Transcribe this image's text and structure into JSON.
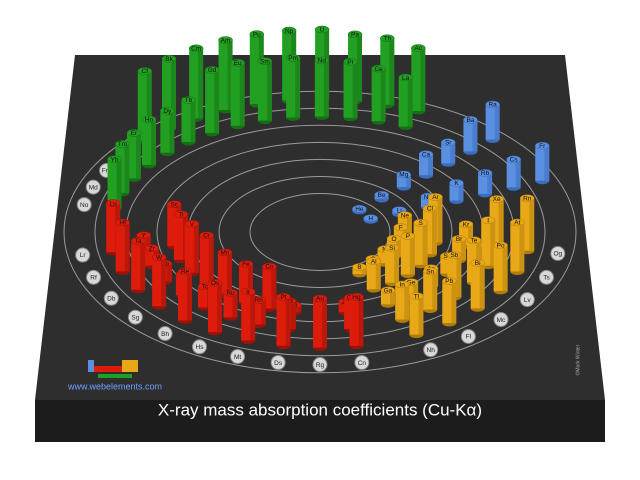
{
  "title": "X-ray mass absorption coefficients (Cu-Kα)",
  "website": "www.webelements.com",
  "credit": "©Mark Winter",
  "s_block": [
    [
      {
        "symbol": "H",
        "value": 0.3
      },
      {
        "symbol": "He",
        "value": 0.3
      }
    ],
    [
      {
        "symbol": "Li",
        "value": 0.5
      },
      {
        "symbol": "Be",
        "value": 0.6
      }
    ],
    [
      {
        "symbol": "Na",
        "value": 1.5
      },
      {
        "symbol": "Mg",
        "value": 1.8
      }
    ],
    [
      {
        "symbol": "K",
        "value": 2.5
      },
      {
        "symbol": "Ca",
        "value": 3
      }
    ],
    [
      {
        "symbol": "Rb",
        "value": 3
      },
      {
        "symbol": "Sr",
        "value": 3
      }
    ],
    [
      {
        "symbol": "Cs",
        "value": 4
      },
      {
        "symbol": "Ba",
        "value": 4.5
      }
    ],
    [
      {
        "symbol": "Fr",
        "value": 5
      },
      {
        "symbol": "Ra",
        "value": 5
      }
    ]
  ],
  "p_block": [
    [
      {
        "symbol": "B",
        "value": 1
      },
      {
        "symbol": "C",
        "value": 1.5
      },
      {
        "symbol": "N",
        "value": 2
      },
      {
        "symbol": "O",
        "value": 2.5
      },
      {
        "symbol": "F",
        "value": 3
      },
      {
        "symbol": "Ne",
        "value": 3.5
      }
    ],
    [
      {
        "symbol": "Al",
        "value": 4
      },
      {
        "symbol": "Si",
        "value": 5
      },
      {
        "symbol": "P",
        "value": 5.5
      },
      {
        "symbol": "S",
        "value": 6
      },
      {
        "symbol": "Cl",
        "value": 6.5
      },
      {
        "symbol": "Ar",
        "value": 6.5
      }
    ],
    [
      {
        "symbol": "Ga",
        "value": 2
      },
      {
        "symbol": "Ge",
        "value": 2
      },
      {
        "symbol": "As",
        "value": 2.5
      },
      {
        "symbol": "Se",
        "value": 2.5
      },
      {
        "symbol": "Br",
        "value": 3
      },
      {
        "symbol": "Kr",
        "value": 3
      }
    ],
    [
      {
        "symbol": "In",
        "value": 5
      },
      {
        "symbol": "Sn",
        "value": 5.5
      },
      {
        "symbol": "Sb",
        "value": 6
      },
      {
        "symbol": "Te",
        "value": 6
      },
      {
        "symbol": "I",
        "value": 6.5
      },
      {
        "symbol": "Xe",
        "value": 7
      }
    ],
    [
      {
        "symbol": "Tl",
        "value": 5.5
      },
      {
        "symbol": "Pb",
        "value": 6
      },
      {
        "symbol": "Bi",
        "value": 6.5
      },
      {
        "symbol": "Po",
        "value": 6.5
      },
      {
        "symbol": "At",
        "value": 7
      },
      {
        "symbol": "Rn",
        "value": 7.5
      }
    ],
    [
      {
        "symbol": "Nh"
      },
      {
        "symbol": "Fl"
      },
      {
        "symbol": "Mc"
      },
      {
        "symbol": "Lv"
      },
      {
        "symbol": "Ts"
      },
      {
        "symbol": "Og"
      }
    ]
  ],
  "d_block": [
    [
      {
        "symbol": "Sc",
        "value": 6
      },
      {
        "symbol": "Ti",
        "value": 6.5
      },
      {
        "symbol": "V",
        "value": 7
      },
      {
        "symbol": "Cr",
        "value": 7
      },
      {
        "symbol": "Mn",
        "value": 6
      },
      {
        "symbol": "Fe",
        "value": 5.5
      },
      {
        "symbol": "Co",
        "value": 6
      },
      {
        "symbol": "Ni",
        "value": 1
      },
      {
        "symbol": "Cu",
        "value": 1.2
      },
      {
        "symbol": "Zn",
        "value": 1.5
      }
    ],
    [
      {
        "symbol": "Y",
        "value": 2
      },
      {
        "symbol": "Zr",
        "value": 2.5
      },
      {
        "symbol": "Nb",
        "value": 2.5
      },
      {
        "symbol": "Mo",
        "value": 3
      },
      {
        "symbol": "Tc",
        "value": 3
      },
      {
        "symbol": "Ru",
        "value": 3.5
      },
      {
        "symbol": "Rh",
        "value": 3.5
      },
      {
        "symbol": "Pd",
        "value": 4
      },
      {
        "symbol": "Ag",
        "value": 4
      },
      {
        "symbol": "Cd",
        "value": 4.5
      }
    ],
    [
      {
        "symbol": "Lu",
        "value": 7
      },
      {
        "symbol": "Hf",
        "value": 7
      },
      {
        "symbol": "Ta",
        "value": 7
      },
      {
        "symbol": "W",
        "value": 7
      },
      {
        "symbol": "Re",
        "value": 7
      },
      {
        "symbol": "Os",
        "value": 7
      },
      {
        "symbol": "Ir",
        "value": 7
      },
      {
        "symbol": "Pt",
        "value": 7
      },
      {
        "symbol": "Au",
        "value": 7
      },
      {
        "symbol": "Hg",
        "value": 7
      }
    ],
    [
      {
        "symbol": "Lr"
      },
      {
        "symbol": "Rf"
      },
      {
        "symbol": "Db"
      },
      {
        "symbol": "Sg"
      },
      {
        "symbol": "Bh"
      },
      {
        "symbol": "Hs"
      },
      {
        "symbol": "Mt"
      },
      {
        "symbol": "Ds"
      },
      {
        "symbol": "Rg"
      },
      {
        "symbol": "Cn"
      }
    ]
  ],
  "f_block": [
    [
      {
        "symbol": "La",
        "value": 7
      },
      {
        "symbol": "Ce",
        "value": 7.5
      },
      {
        "symbol": "Pr",
        "value": 8
      },
      {
        "symbol": "Nd",
        "value": 8
      },
      {
        "symbol": "Pm",
        "value": 8.5
      },
      {
        "symbol": "Sm",
        "value": 8.5
      },
      {
        "symbol": "Eu",
        "value": 9
      },
      {
        "symbol": "Gd",
        "value": 9
      },
      {
        "symbol": "Tb",
        "value": 6
      },
      {
        "symbol": "Dy",
        "value": 6
      },
      {
        "symbol": "Ho",
        "value": 6.5
      },
      {
        "symbol": "Er",
        "value": 6.5
      },
      {
        "symbol": "Tm",
        "value": 7
      },
      {
        "symbol": "Yb",
        "value": 7
      }
    ],
    [
      {
        "symbol": "Ac",
        "value": 9
      },
      {
        "symbol": "Th",
        "value": 9.5
      },
      {
        "symbol": "Pa",
        "value": 9.5
      },
      {
        "symbol": "U",
        "value": 10
      },
      {
        "symbol": "Np",
        "value": 10
      },
      {
        "symbol": "Pu",
        "value": 10
      },
      {
        "symbol": "Am",
        "value": 10
      },
      {
        "symbol": "Cm",
        "value": 10
      },
      {
        "symbol": "Bk",
        "value": 10
      },
      {
        "symbol": "Cf",
        "value": 10
      },
      {
        "symbol": "Es"
      },
      {
        "symbol": "Fm"
      },
      {
        "symbol": "Md"
      },
      {
        "symbol": "No"
      }
    ]
  ]
}
